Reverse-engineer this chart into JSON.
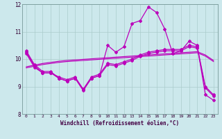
{
  "xlabel": "Windchill (Refroidissement éolien,°C)",
  "background_color": "#cce8ec",
  "grid_color": "#aacccc",
  "line_color": "#bb00bb",
  "xlim": [
    -0.5,
    23.5
  ],
  "ylim": [
    8.0,
    12.0
  ],
  "yticks": [
    8,
    9,
    10,
    11,
    12
  ],
  "xticks": [
    0,
    1,
    2,
    3,
    4,
    5,
    6,
    7,
    8,
    9,
    10,
    11,
    12,
    13,
    14,
    15,
    16,
    17,
    18,
    19,
    20,
    21,
    22,
    23
  ],
  "hours": [
    0,
    1,
    2,
    3,
    4,
    5,
    6,
    7,
    8,
    9,
    10,
    11,
    12,
    13,
    14,
    15,
    16,
    17,
    18,
    19,
    20,
    21,
    22,
    23
  ],
  "curve_main": [
    10.3,
    9.8,
    9.55,
    9.55,
    9.3,
    9.2,
    9.3,
    8.85,
    9.3,
    9.4,
    10.5,
    10.25,
    10.45,
    11.3,
    11.4,
    11.9,
    11.7,
    11.1,
    10.2,
    10.3,
    10.65,
    10.5,
    8.7,
    8.5
  ],
  "curve_wc1": [
    10.25,
    9.75,
    9.5,
    9.5,
    9.35,
    9.25,
    9.35,
    8.9,
    9.35,
    9.45,
    9.85,
    9.8,
    9.9,
    10.0,
    10.15,
    10.25,
    10.3,
    10.35,
    10.35,
    10.35,
    10.5,
    10.45,
    9.0,
    8.7
  ],
  "curve_wc2": [
    10.2,
    9.7,
    9.5,
    9.5,
    9.3,
    9.2,
    9.3,
    8.9,
    9.3,
    9.4,
    9.8,
    9.75,
    9.85,
    9.95,
    10.1,
    10.2,
    10.25,
    10.3,
    10.3,
    10.3,
    10.45,
    10.4,
    8.95,
    8.65
  ],
  "trend1": [
    9.72,
    9.78,
    9.84,
    9.88,
    9.92,
    9.95,
    9.97,
    9.99,
    10.01,
    10.03,
    10.05,
    10.07,
    10.09,
    10.11,
    10.13,
    10.15,
    10.17,
    10.19,
    10.21,
    10.23,
    10.25,
    10.27,
    10.15,
    9.95
  ],
  "trend2": [
    9.68,
    9.74,
    9.8,
    9.84,
    9.88,
    9.91,
    9.93,
    9.95,
    9.97,
    9.99,
    10.01,
    10.03,
    10.05,
    10.07,
    10.09,
    10.11,
    10.13,
    10.15,
    10.17,
    10.19,
    10.21,
    10.23,
    10.11,
    9.91
  ]
}
